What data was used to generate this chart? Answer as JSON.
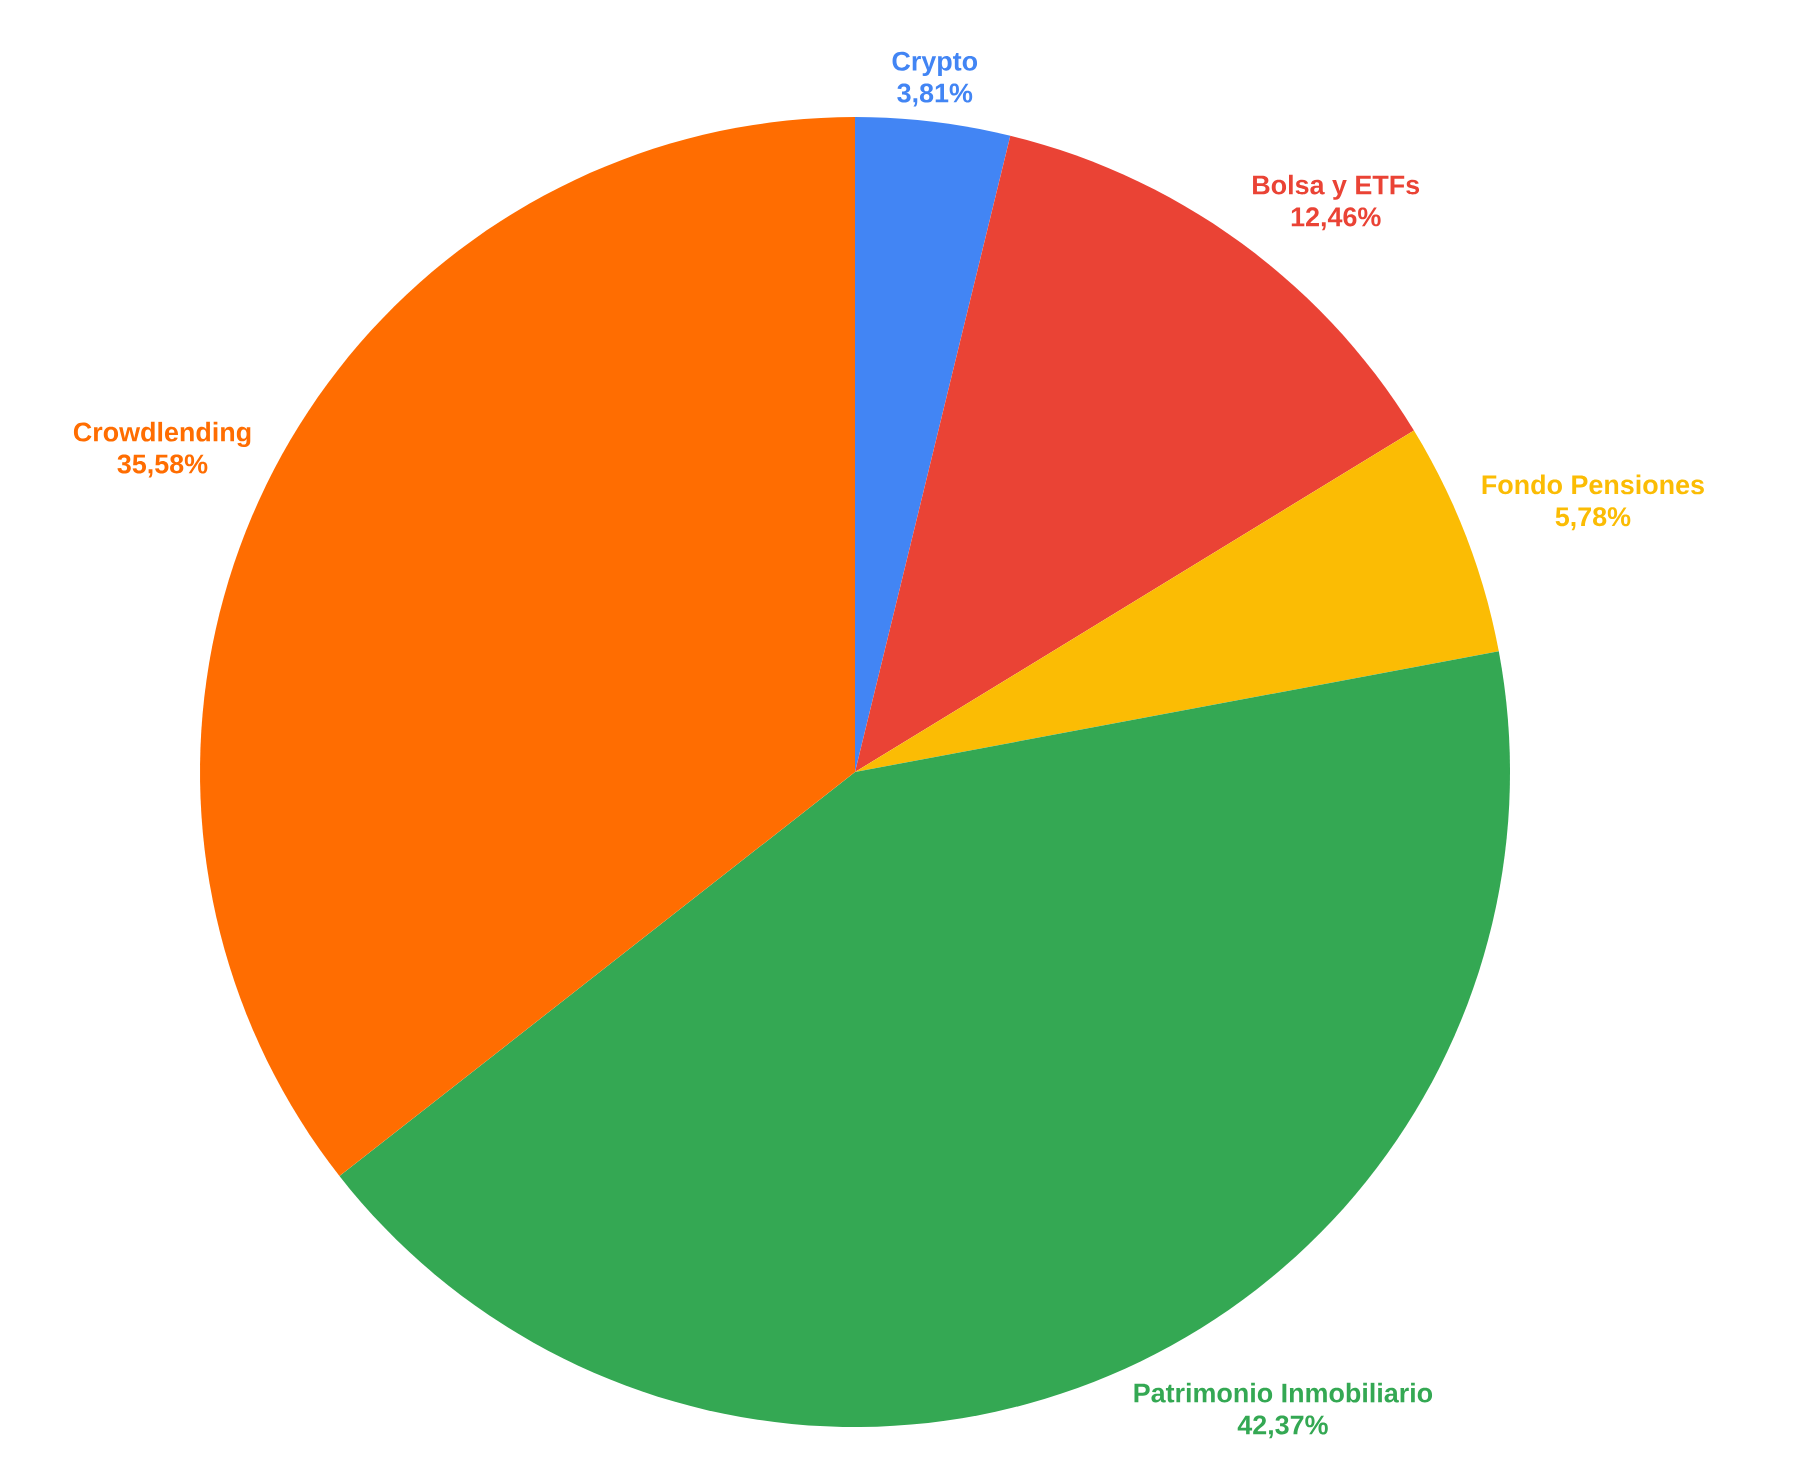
{
  "chart_data": {
    "type": "pie",
    "categories": [
      "Crypto",
      "Bolsa y ETFs",
      "Fondo Pensiones",
      "Patrimonio Inmobiliario",
      "Crowdlending"
    ],
    "values": [
      3.81,
      12.46,
      5.78,
      42.37,
      35.58
    ],
    "value_labels": [
      "3,81%",
      "12,46%",
      "5,78%",
      "42,37%",
      "35,58%"
    ],
    "colors": [
      "#4285f4",
      "#ea4335",
      "#fbbc04",
      "#34a853",
      "#ff6d01"
    ]
  }
}
